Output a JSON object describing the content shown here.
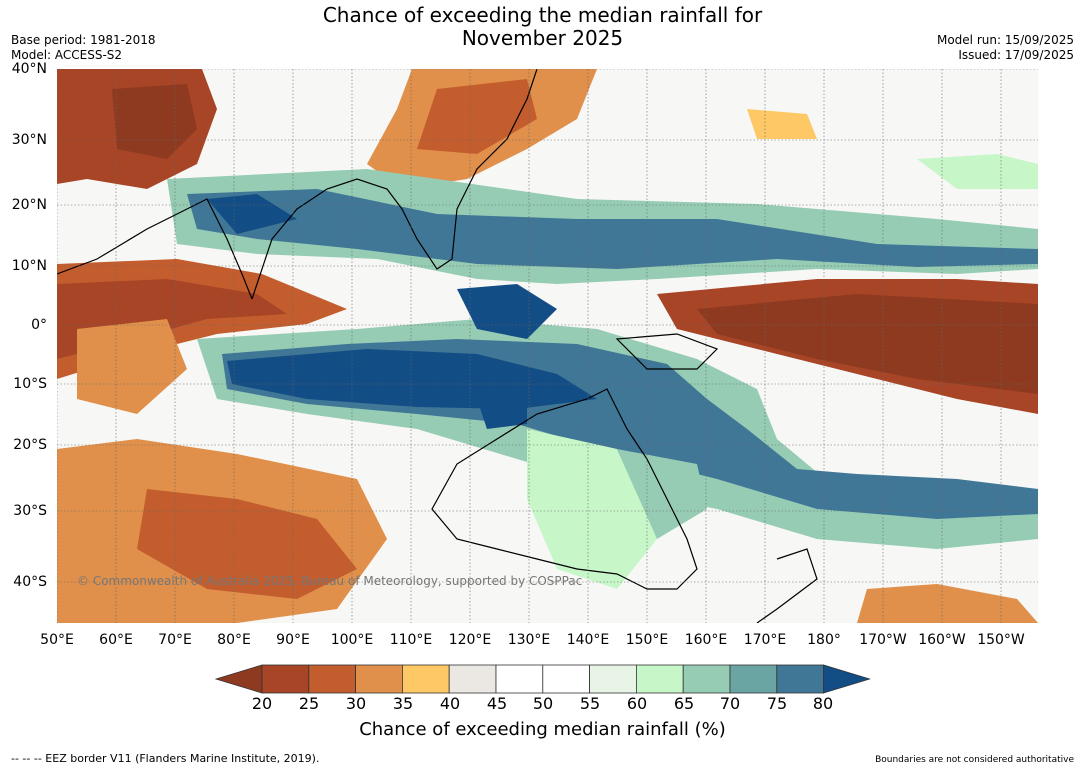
{
  "title_line1": "Chance of exceeding the median rainfall for",
  "title_line2": "November 2025",
  "meta_left": {
    "base_period": "Base period: 1981-2018",
    "model": "Model: ACCESS-S2"
  },
  "meta_right": {
    "model_run": "Model run: 15/09/2025",
    "issued": "Issued: 17/09/2025"
  },
  "lat_labels": [
    "40°N",
    "30°N",
    "20°N",
    "10°N",
    "0°",
    "10°S",
    "20°S",
    "30°S",
    "40°S"
  ],
  "lon_labels": [
    "50°E",
    "60°E",
    "70°E",
    "80°E",
    "90°E",
    "100°E",
    "110°E",
    "120°E",
    "130°E",
    "140°E",
    "150°E",
    "160°E",
    "170°E",
    "180°",
    "170°W",
    "160°W",
    "150°W"
  ],
  "copyright": "© Commonwealth of Australia 2025, Bureau of Meteorology, supported by COSPPac",
  "colorbar": {
    "ticks": [
      "20",
      "25",
      "30",
      "35",
      "40",
      "45",
      "50",
      "55",
      "60",
      "65",
      "70",
      "75",
      "80"
    ],
    "title": "Chance of exceeding median rainfall (%)",
    "colors": [
      "#8e3a20",
      "#a84526",
      "#c45d2e",
      "#e0904a",
      "#fdc865",
      "#ebe8e3",
      "#ffffff",
      "#ffffff",
      "#e8f5e6",
      "#c7f7c9",
      "#96ccb4",
      "#6aa5a3",
      "#407797",
      "#134d85"
    ]
  },
  "footer_left": "--  --  -- EEZ border V11 (Flanders Marine Institute, 2019).",
  "footer_right": "Boundaries are not considered authoritative"
}
